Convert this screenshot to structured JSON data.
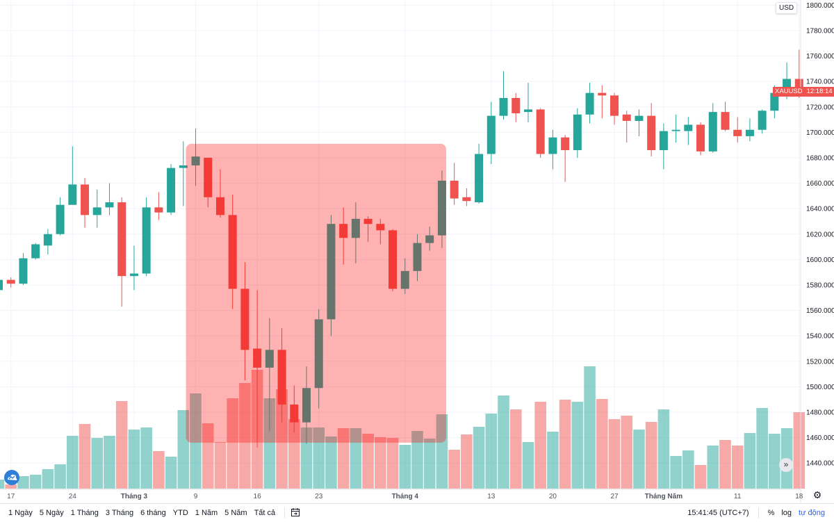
{
  "symbol": "XAUUSD",
  "countdown": "12:18:14",
  "currency_button": "USD",
  "colors": {
    "up": "#26a69a",
    "down": "#ef5350",
    "highlight_rect": "rgba(255,0,0,0.3)",
    "grid": "#f0f3fa"
  },
  "toolbar": {
    "ranges": [
      "1 Ngày",
      "5 Ngày",
      "1 Tháng",
      "3 Tháng",
      "6 tháng",
      "YTD",
      "1 Năm",
      "5 Năm",
      "Tất cả"
    ],
    "date_range_icon": "calendar-goto-icon",
    "time": "15:41:45 (UTC+7)",
    "percent": "%",
    "log": "log",
    "auto": "tự động"
  },
  "icons": {
    "logo": "tradingview-cloud-icon",
    "scroll": "double-chevron-right-icon",
    "settings": "gear-icon"
  },
  "chart_data": {
    "type": "candlestick",
    "title": "",
    "y_axis": {
      "ticks": [
        "1440.000",
        "1460.000",
        "1480.000",
        "1500.000",
        "1520.000",
        "1540.000",
        "1560.000",
        "1580.000",
        "1600.000",
        "1620.000",
        "1640.000",
        "1660.000",
        "1680.000",
        "1700.000",
        "1720.000",
        "1740.000",
        "1760.000",
        "1780.000",
        "1800.000"
      ],
      "ylim": [
        1430,
        1800
      ],
      "position": "right"
    },
    "x_axis": {
      "ticks": [
        {
          "label": "17",
          "date": "02-17"
        },
        {
          "label": "24",
          "date": "02-24"
        },
        {
          "label": "Tháng 3",
          "date": "03-02",
          "major": true
        },
        {
          "label": "9",
          "date": "03-09"
        },
        {
          "label": "16",
          "date": "03-16"
        },
        {
          "label": "23",
          "date": "03-23"
        },
        {
          "label": "Tháng 4",
          "date": "04-01",
          "major": true
        },
        {
          "label": "13",
          "date": "04-13"
        },
        {
          "label": "20",
          "date": "04-20"
        },
        {
          "label": "27",
          "date": "04-27"
        },
        {
          "label": "Tháng Năm",
          "date": "05-01",
          "major": true
        },
        {
          "label": "11",
          "date": "05-11"
        },
        {
          "label": "18",
          "date": "05-18"
        }
      ]
    },
    "grid": true,
    "highlight_rectangle": {
      "from": "03-09",
      "to": "04-06",
      "price_top": 1691,
      "price_bottom": 1456
    },
    "candles": [
      [
        "02-14",
        1576,
        1586,
        1574,
        1584,
        13
      ],
      [
        "02-17",
        1584,
        1586,
        1578,
        1581,
        6
      ],
      [
        "02-18",
        1581,
        1605,
        1580,
        1601,
        18
      ],
      [
        "02-19",
        1601,
        1613,
        1600,
        1612,
        20
      ],
      [
        "02-20",
        1611,
        1624,
        1604,
        1620,
        28
      ],
      [
        "02-21",
        1620,
        1649,
        1619,
        1643,
        35
      ],
      [
        "02-24",
        1643,
        1689,
        1643,
        1659,
        76
      ],
      [
        "02-25",
        1659,
        1664,
        1625,
        1635,
        93
      ],
      [
        "02-26",
        1635,
        1655,
        1625,
        1641,
        73
      ],
      [
        "02-27",
        1641,
        1660,
        1635,
        1645,
        76
      ],
      [
        "02-28",
        1645,
        1649,
        1563,
        1587,
        126
      ],
      [
        "03-02",
        1587,
        1611,
        1576,
        1589,
        85
      ],
      [
        "03-03",
        1589,
        1649,
        1587,
        1641,
        88
      ],
      [
        "03-04",
        1641,
        1653,
        1631,
        1637,
        54
      ],
      [
        "03-05",
        1637,
        1675,
        1635,
        1672,
        46
      ],
      [
        "03-06",
        1672,
        1693,
        1642,
        1674,
        113
      ],
      [
        "03-09",
        1674,
        1703,
        1658,
        1681,
        137
      ],
      [
        "03-10",
        1680,
        1680,
        1641,
        1649,
        94
      ],
      [
        "03-11",
        1649,
        1671,
        1633,
        1635,
        67
      ],
      [
        "03-12",
        1635,
        1651,
        1561,
        1577,
        130
      ],
      [
        "03-13",
        1577,
        1598,
        1505,
        1529,
        152
      ],
      [
        "03-16",
        1530,
        1576,
        1452,
        1515,
        171
      ],
      [
        "03-17",
        1515,
        1554,
        1465,
        1529,
        130
      ],
      [
        "03-18",
        1529,
        1546,
        1472,
        1486,
        143
      ],
      [
        "03-19",
        1486,
        1501,
        1464,
        1472,
        100
      ],
      [
        "03-20",
        1472,
        1516,
        1455,
        1499,
        88
      ],
      [
        "03-23",
        1499,
        1561,
        1483,
        1553,
        88
      ],
      [
        "03-24",
        1553,
        1635,
        1540,
        1628,
        75
      ],
      [
        "03-25",
        1628,
        1641,
        1596,
        1617,
        87
      ],
      [
        "03-26",
        1617,
        1645,
        1597,
        1632,
        87
      ],
      [
        "03-27",
        1632,
        1634,
        1614,
        1628,
        79
      ],
      [
        "03-30",
        1628,
        1632,
        1612,
        1623,
        74
      ],
      [
        "03-31",
        1623,
        1624,
        1575,
        1577,
        73
      ],
      [
        "04-01",
        1577,
        1601,
        1573,
        1591,
        63
      ],
      [
        "04-02",
        1591,
        1620,
        1583,
        1613,
        83
      ],
      [
        "04-03",
        1613,
        1626,
        1607,
        1619,
        72
      ],
      [
        "04-06",
        1619,
        1670,
        1609,
        1662,
        107
      ],
      [
        "04-07",
        1662,
        1676,
        1643,
        1648,
        56
      ],
      [
        "04-08",
        1649,
        1656,
        1642,
        1646,
        78
      ],
      [
        "04-09",
        1645,
        1691,
        1644,
        1683,
        89
      ],
      [
        "04-13",
        1683,
        1724,
        1675,
        1713,
        108
      ],
      [
        "04-14",
        1713,
        1748,
        1710,
        1727,
        134
      ],
      [
        "04-15",
        1727,
        1731,
        1708,
        1715,
        114
      ],
      [
        "04-16",
        1716,
        1739,
        1708,
        1718,
        67
      ],
      [
        "04-17",
        1718,
        1719,
        1680,
        1683,
        125
      ],
      [
        "04-20",
        1683,
        1702,
        1671,
        1696,
        82
      ],
      [
        "04-21",
        1696,
        1698,
        1661,
        1686,
        128
      ],
      [
        "04-22",
        1686,
        1719,
        1680,
        1714,
        125
      ],
      [
        "04-23",
        1714,
        1739,
        1707,
        1731,
        176
      ],
      [
        "04-24",
        1731,
        1737,
        1711,
        1729,
        129
      ],
      [
        "04-27",
        1729,
        1731,
        1706,
        1713,
        100
      ],
      [
        "04-28",
        1714,
        1717,
        1692,
        1709,
        105
      ],
      [
        "04-29",
        1709,
        1718,
        1697,
        1713,
        85
      ],
      [
        "04-30",
        1713,
        1723,
        1681,
        1686,
        96
      ],
      [
        "05-01",
        1686,
        1707,
        1671,
        1701,
        114
      ],
      [
        "05-04",
        1701,
        1714,
        1692,
        1702,
        47
      ],
      [
        "05-05",
        1701,
        1712,
        1690,
        1706,
        55
      ],
      [
        "05-06",
        1706,
        1708,
        1682,
        1685,
        34
      ],
      [
        "05-07",
        1685,
        1723,
        1684,
        1716,
        62
      ],
      [
        "05-08",
        1716,
        1724,
        1701,
        1702,
        70
      ],
      [
        "05-11",
        1702,
        1712,
        1692,
        1697,
        62
      ],
      [
        "05-12",
        1697,
        1711,
        1693,
        1702,
        80
      ],
      [
        "05-13",
        1702,
        1718,
        1699,
        1717,
        116
      ],
      [
        "05-14",
        1717,
        1737,
        1711,
        1731,
        79
      ],
      [
        "05-15",
        1730,
        1755,
        1726,
        1742,
        87
      ],
      [
        "05-18",
        1742,
        1765,
        1727,
        1735,
        110
      ]
    ],
    "candle_fields": [
      "date",
      "open",
      "high",
      "low",
      "close",
      "volume_relative"
    ]
  }
}
